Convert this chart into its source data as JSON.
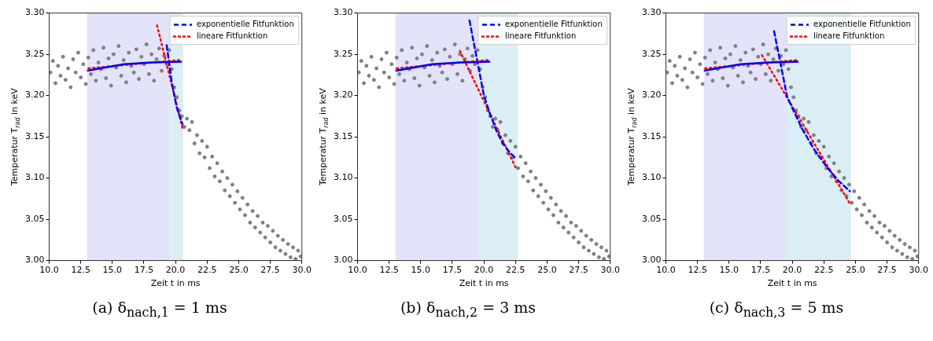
{
  "chart_data": [
    {
      "type": "scatter",
      "xlabel": "Zeit t in ms",
      "ylabel": "Temperatur T$_{rad}$ in keV",
      "annotations": [
        "(a) δ$_{nach,1}$ = 1 ms"
      ],
      "legend": "top right",
      "xlim": [
        10,
        30
      ],
      "xticks": [
        {
          "value": 10,
          "label": "10.0"
        },
        {
          "value": 12.5,
          "label": "12.5"
        },
        {
          "value": 15,
          "label": "15.0"
        },
        {
          "value": 17.5,
          "label": "17.5"
        },
        {
          "value": 20,
          "label": "20.0"
        },
        {
          "value": 22.5,
          "label": "22.5"
        },
        {
          "value": 25,
          "label": "25.0"
        },
        {
          "value": 27.5,
          "label": "27.5"
        },
        {
          "value": 30,
          "label": "30.0"
        }
      ],
      "ylim": [
        3.0,
        3.3
      ],
      "yticks": [
        {
          "value": 3.0,
          "label": "3.00"
        },
        {
          "value": 3.05,
          "label": "3.05"
        },
        {
          "value": 3.1,
          "label": "3.10"
        },
        {
          "value": 3.15,
          "label": "3.15"
        },
        {
          "value": 3.2,
          "label": "3.20"
        },
        {
          "value": 3.25,
          "label": "3.25"
        },
        {
          "value": 3.3,
          "label": "3.30"
        }
      ],
      "bands": [
        {
          "axis": "x",
          "from": 13.0,
          "to": 19.6,
          "color": "#e3e3fa"
        },
        {
          "axis": "x",
          "from": 19.6,
          "to": 20.6,
          "color": "#dceef5"
        }
      ],
      "series": [
        {
          "color": "#808080",
          "marker": "circle",
          "x": [
            10.1,
            10.3,
            10.5,
            10.7,
            10.9,
            11.1,
            11.3,
            11.5,
            11.7,
            11.9,
            12.1,
            12.3,
            12.5,
            12.7,
            12.9,
            13.1,
            13.3,
            13.5,
            13.7,
            13.9,
            14.1,
            14.3,
            14.5,
            14.7,
            14.9,
            15.1,
            15.3,
            15.5,
            15.7,
            15.9,
            16.1,
            16.3,
            16.5,
            16.7,
            16.9,
            17.1,
            17.3,
            17.5,
            17.7,
            17.9,
            18.1,
            18.3,
            18.5,
            18.7,
            18.9,
            19.1,
            19.3,
            19.5,
            19.7,
            19.9,
            20.1,
            20.3,
            20.5,
            20.7,
            20.9,
            21.1,
            21.3,
            21.5,
            21.7,
            21.9,
            22.1,
            22.3,
            22.5,
            22.7,
            22.9,
            23.1,
            23.3,
            23.5,
            23.7,
            23.9,
            24.1,
            24.3,
            24.5,
            24.7,
            24.9,
            25.1,
            25.3,
            25.5,
            25.7,
            25.9,
            26.1,
            26.3,
            26.5,
            26.7,
            26.9,
            27.1,
            27.3,
            27.5,
            27.7,
            27.9,
            28.1,
            28.3,
            28.5,
            28.7,
            28.9,
            29.1,
            29.3,
            29.5,
            29.7,
            29.9
          ],
          "values": [
            3.228,
            3.242,
            3.215,
            3.236,
            3.224,
            3.247,
            3.219,
            3.233,
            3.21,
            3.244,
            3.228,
            3.252,
            3.222,
            3.238,
            3.214,
            3.246,
            3.226,
            3.255,
            3.218,
            3.24,
            3.232,
            3.258,
            3.221,
            3.245,
            3.212,
            3.25,
            3.234,
            3.26,
            3.224,
            3.243,
            3.216,
            3.252,
            3.236,
            3.228,
            3.256,
            3.22,
            3.247,
            3.238,
            3.262,
            3.226,
            3.25,
            3.218,
            3.244,
            3.257,
            3.23,
            3.248,
            3.238,
            3.255,
            3.232,
            3.21,
            3.198,
            3.182,
            3.175,
            3.162,
            3.172,
            3.158,
            3.168,
            3.142,
            3.152,
            3.13,
            3.145,
            3.125,
            3.138,
            3.112,
            3.126,
            3.102,
            3.118,
            3.096,
            3.108,
            3.085,
            3.1,
            3.078,
            3.092,
            3.07,
            3.084,
            3.062,
            3.076,
            3.055,
            3.068,
            3.046,
            3.06,
            3.04,
            3.054,
            3.034,
            3.046,
            3.028,
            3.042,
            3.022,
            3.036,
            3.016,
            3.03,
            3.012,
            3.025,
            3.008,
            3.02,
            3.004,
            3.016,
            3.002,
            3.012,
            3.005
          ]
        },
        {
          "type": "line",
          "color": "#0000ff",
          "line_style": "solid",
          "x": [
            13.0,
            15.9,
            18.1,
            20.5
          ],
          "values": [
            3.23,
            3.238,
            3.24,
            3.241
          ]
        },
        {
          "type": "line",
          "color": "#ff0000",
          "line_style": "dotted",
          "x": [
            13.1,
            20.3
          ],
          "values": [
            3.233,
            3.243
          ]
        },
        {
          "type": "line",
          "name": "exponentielle Fitfunktion",
          "color": "#0000ff",
          "line_style": "dashed",
          "x": [
            19.3,
            19.7,
            20.1,
            20.56
          ],
          "values": [
            3.261,
            3.216,
            3.185,
            3.165
          ]
        },
        {
          "type": "line",
          "name": "lineare Fitfunktion",
          "color": "#ff0000",
          "line_style": "dotted",
          "x": [
            18.54,
            20.54
          ],
          "values": [
            3.285,
            3.161
          ]
        }
      ]
    },
    {
      "type": "scatter",
      "xlabel": "Zeit t in ms",
      "ylabel": "Temperatur T$_{rad}$ in keV",
      "annotations": [
        "(b) δ$_{nach,2}$ = 3 ms"
      ],
      "legend": "top right",
      "xlim": [
        10,
        30
      ],
      "xticks": [
        {
          "value": 10,
          "label": "10.0"
        },
        {
          "value": 12.5,
          "label": "12.5"
        },
        {
          "value": 15,
          "label": "15.0"
        },
        {
          "value": 17.5,
          "label": "17.5"
        },
        {
          "value": 20,
          "label": "20.0"
        },
        {
          "value": 22.5,
          "label": "22.5"
        },
        {
          "value": 25,
          "label": "25.0"
        },
        {
          "value": 27.5,
          "label": "27.5"
        },
        {
          "value": 30,
          "label": "30.0"
        }
      ],
      "ylim": [
        3.0,
        3.3
      ],
      "yticks": [
        {
          "value": 3.0,
          "label": "3.00"
        },
        {
          "value": 3.05,
          "label": "3.05"
        },
        {
          "value": 3.1,
          "label": "3.10"
        },
        {
          "value": 3.15,
          "label": "3.15"
        },
        {
          "value": 3.2,
          "label": "3.20"
        },
        {
          "value": 3.25,
          "label": "3.25"
        },
        {
          "value": 3.3,
          "label": "3.30"
        }
      ],
      "bands": [
        {
          "axis": "x",
          "from": 13.0,
          "to": 19.6,
          "color": "#e3e3fa"
        },
        {
          "axis": "x",
          "from": 19.6,
          "to": 22.7,
          "color": "#dceef5"
        }
      ],
      "series": [
        {
          "color": "#808080",
          "marker": "circle",
          "x": [
            10.1,
            10.3,
            10.5,
            10.7,
            10.9,
            11.1,
            11.3,
            11.5,
            11.7,
            11.9,
            12.1,
            12.3,
            12.5,
            12.7,
            12.9,
            13.1,
            13.3,
            13.5,
            13.7,
            13.9,
            14.1,
            14.3,
            14.5,
            14.7,
            14.9,
            15.1,
            15.3,
            15.5,
            15.7,
            15.9,
            16.1,
            16.3,
            16.5,
            16.7,
            16.9,
            17.1,
            17.3,
            17.5,
            17.7,
            17.9,
            18.1,
            18.3,
            18.5,
            18.7,
            18.9,
            19.1,
            19.3,
            19.5,
            19.7,
            19.9,
            20.1,
            20.3,
            20.5,
            20.7,
            20.9,
            21.1,
            21.3,
            21.5,
            21.7,
            21.9,
            22.1,
            22.3,
            22.5,
            22.7,
            22.9,
            23.1,
            23.3,
            23.5,
            23.7,
            23.9,
            24.1,
            24.3,
            24.5,
            24.7,
            24.9,
            25.1,
            25.3,
            25.5,
            25.7,
            25.9,
            26.1,
            26.3,
            26.5,
            26.7,
            26.9,
            27.1,
            27.3,
            27.5,
            27.7,
            27.9,
            28.1,
            28.3,
            28.5,
            28.7,
            28.9,
            29.1,
            29.3,
            29.5,
            29.7,
            29.9
          ],
          "values": [
            3.228,
            3.242,
            3.215,
            3.236,
            3.224,
            3.247,
            3.219,
            3.233,
            3.21,
            3.244,
            3.228,
            3.252,
            3.222,
            3.238,
            3.214,
            3.246,
            3.226,
            3.255,
            3.218,
            3.24,
            3.232,
            3.258,
            3.221,
            3.245,
            3.212,
            3.25,
            3.234,
            3.26,
            3.224,
            3.243,
            3.216,
            3.252,
            3.236,
            3.228,
            3.256,
            3.22,
            3.247,
            3.238,
            3.262,
            3.226,
            3.25,
            3.218,
            3.244,
            3.257,
            3.23,
            3.248,
            3.238,
            3.255,
            3.232,
            3.21,
            3.198,
            3.182,
            3.175,
            3.162,
            3.172,
            3.158,
            3.168,
            3.142,
            3.152,
            3.13,
            3.145,
            3.125,
            3.138,
            3.112,
            3.126,
            3.102,
            3.118,
            3.096,
            3.108,
            3.085,
            3.1,
            3.078,
            3.092,
            3.07,
            3.084,
            3.062,
            3.076,
            3.055,
            3.068,
            3.046,
            3.06,
            3.04,
            3.054,
            3.034,
            3.046,
            3.028,
            3.042,
            3.022,
            3.036,
            3.016,
            3.03,
            3.012,
            3.025,
            3.008,
            3.02,
            3.004,
            3.016,
            3.002,
            3.012,
            3.005
          ]
        },
        {
          "type": "line",
          "color": "#0000ff",
          "line_style": "solid",
          "x": [
            13.0,
            15.9,
            18.1,
            20.5
          ],
          "values": [
            3.23,
            3.238,
            3.24,
            3.241
          ]
        },
        {
          "type": "line",
          "color": "#ff0000",
          "line_style": "dotted",
          "x": [
            13.1,
            20.3
          ],
          "values": [
            3.233,
            3.243
          ]
        },
        {
          "type": "line",
          "name": "exponentielle Fitfunktion",
          "color": "#0000ff",
          "line_style": "dashed",
          "x": [
            18.86,
            19.5,
            20.0,
            20.5,
            21.0,
            21.5,
            22.0,
            22.5
          ],
          "values": [
            3.291,
            3.24,
            3.2,
            3.177,
            3.157,
            3.142,
            3.132,
            3.124
          ]
        },
        {
          "type": "line",
          "name": "lineare Fitfunktion",
          "color": "#ff0000",
          "line_style": "dotted",
          "x": [
            18.1,
            22.6
          ],
          "values": [
            3.254,
            3.11
          ]
        }
      ]
    },
    {
      "type": "scatter",
      "xlabel": "Zeit t in ms",
      "ylabel": "Temperatur T$_{rad}$ in keV",
      "annotations": [
        "(c) δ$_{nach,3}$ = 5 ms"
      ],
      "legend": "top right",
      "xlim": [
        10,
        30
      ],
      "xticks": [
        {
          "value": 10,
          "label": "10.0"
        },
        {
          "value": 12.5,
          "label": "12.5"
        },
        {
          "value": 15,
          "label": "15.0"
        },
        {
          "value": 17.5,
          "label": "17.5"
        },
        {
          "value": 20,
          "label": "20.0"
        },
        {
          "value": 22.5,
          "label": "22.5"
        },
        {
          "value": 25,
          "label": "25.0"
        },
        {
          "value": 27.5,
          "label": "27.5"
        },
        {
          "value": 30,
          "label": "30.0"
        }
      ],
      "ylim": [
        3.0,
        3.3
      ],
      "yticks": [
        {
          "value": 3.0,
          "label": "3.00"
        },
        {
          "value": 3.05,
          "label": "3.05"
        },
        {
          "value": 3.1,
          "label": "3.10"
        },
        {
          "value": 3.15,
          "label": "3.15"
        },
        {
          "value": 3.2,
          "label": "3.20"
        },
        {
          "value": 3.25,
          "label": "3.25"
        },
        {
          "value": 3.3,
          "label": "3.30"
        }
      ],
      "bands": [
        {
          "axis": "x",
          "from": 13.0,
          "to": 19.55,
          "color": "#e3e3fa"
        },
        {
          "axis": "x",
          "from": 19.55,
          "to": 24.65,
          "color": "#dceef5"
        }
      ],
      "series": [
        {
          "color": "#808080",
          "marker": "circle",
          "x": [
            10.1,
            10.3,
            10.5,
            10.7,
            10.9,
            11.1,
            11.3,
            11.5,
            11.7,
            11.9,
            12.1,
            12.3,
            12.5,
            12.7,
            12.9,
            13.1,
            13.3,
            13.5,
            13.7,
            13.9,
            14.1,
            14.3,
            14.5,
            14.7,
            14.9,
            15.1,
            15.3,
            15.5,
            15.7,
            15.9,
            16.1,
            16.3,
            16.5,
            16.7,
            16.9,
            17.1,
            17.3,
            17.5,
            17.7,
            17.9,
            18.1,
            18.3,
            18.5,
            18.7,
            18.9,
            19.1,
            19.3,
            19.5,
            19.7,
            19.9,
            20.1,
            20.3,
            20.5,
            20.7,
            20.9,
            21.1,
            21.3,
            21.5,
            21.7,
            21.9,
            22.1,
            22.3,
            22.5,
            22.7,
            22.9,
            23.1,
            23.3,
            23.5,
            23.7,
            23.9,
            24.1,
            24.3,
            24.5,
            24.7,
            24.9,
            25.1,
            25.3,
            25.5,
            25.7,
            25.9,
            26.1,
            26.3,
            26.5,
            26.7,
            26.9,
            27.1,
            27.3,
            27.5,
            27.7,
            27.9,
            28.1,
            28.3,
            28.5,
            28.7,
            28.9,
            29.1,
            29.3,
            29.5,
            29.7,
            29.9
          ],
          "values": [
            3.228,
            3.242,
            3.215,
            3.236,
            3.224,
            3.247,
            3.219,
            3.233,
            3.21,
            3.244,
            3.228,
            3.252,
            3.222,
            3.238,
            3.214,
            3.246,
            3.226,
            3.255,
            3.218,
            3.24,
            3.232,
            3.258,
            3.221,
            3.245,
            3.212,
            3.25,
            3.234,
            3.26,
            3.224,
            3.243,
            3.216,
            3.252,
            3.236,
            3.228,
            3.256,
            3.22,
            3.247,
            3.238,
            3.262,
            3.226,
            3.25,
            3.218,
            3.244,
            3.257,
            3.23,
            3.248,
            3.238,
            3.255,
            3.232,
            3.21,
            3.198,
            3.182,
            3.175,
            3.162,
            3.172,
            3.158,
            3.168,
            3.142,
            3.152,
            3.13,
            3.145,
            3.125,
            3.138,
            3.112,
            3.126,
            3.102,
            3.118,
            3.096,
            3.108,
            3.085,
            3.1,
            3.078,
            3.092,
            3.07,
            3.084,
            3.062,
            3.076,
            3.055,
            3.068,
            3.046,
            3.06,
            3.04,
            3.054,
            3.034,
            3.046,
            3.028,
            3.042,
            3.022,
            3.036,
            3.016,
            3.03,
            3.012,
            3.025,
            3.008,
            3.02,
            3.004,
            3.016,
            3.002,
            3.012,
            3.005
          ]
        },
        {
          "type": "line",
          "color": "#0000ff",
          "line_style": "solid",
          "x": [
            13.0,
            15.9,
            18.1,
            20.5
          ],
          "values": [
            3.23,
            3.238,
            3.24,
            3.241
          ]
        },
        {
          "type": "line",
          "color": "#ff0000",
          "line_style": "dotted",
          "x": [
            13.1,
            20.3
          ],
          "values": [
            3.233,
            3.243
          ]
        },
        {
          "type": "line",
          "name": "exponentielle Fitfunktion",
          "color": "#0000ff",
          "line_style": "dashed",
          "x": [
            18.56,
            19.6,
            20.8,
            21.8,
            22.8,
            23.7,
            24.56
          ],
          "values": [
            3.278,
            3.198,
            3.159,
            3.133,
            3.112,
            3.096,
            3.084
          ]
        },
        {
          "type": "line",
          "name": "lineare Fitfunktion",
          "color": "#ff0000",
          "line_style": "dotted",
          "x": [
            17.6,
            24.56
          ],
          "values": [
            3.249,
            3.069
          ]
        }
      ]
    }
  ]
}
